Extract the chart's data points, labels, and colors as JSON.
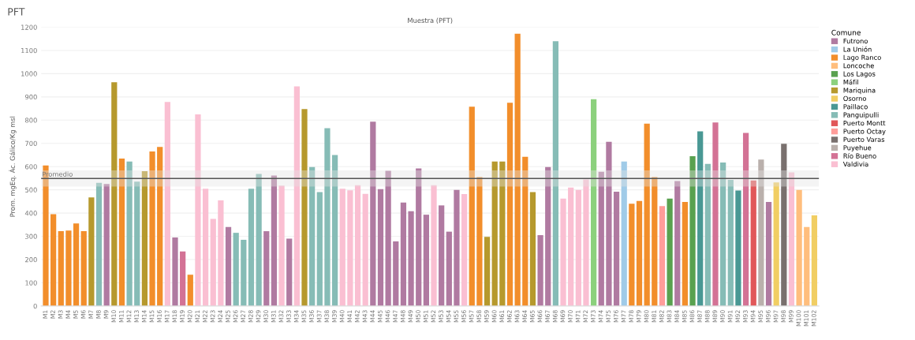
{
  "chart_data": {
    "type": "bar",
    "title": "PFT",
    "subtitle": "Muestra (PFT)",
    "ylabel": "Prom. mgEq. Ác. Gálico/Kg msl",
    "legend_title": "Comune",
    "categories": [
      "M1",
      "M2",
      "M3",
      "M4",
      "M5",
      "M6",
      "M7",
      "M8",
      "M9",
      "M10",
      "M11",
      "M12",
      "M13",
      "M14",
      "M15",
      "M16",
      "M17",
      "M18",
      "M19",
      "M20",
      "M21",
      "M22",
      "M23",
      "M24",
      "M25",
      "M26",
      "M27",
      "M28",
      "M29",
      "M30",
      "M31",
      "M32",
      "M33",
      "M34",
      "M35",
      "M36",
      "M37",
      "M38",
      "M39",
      "M40",
      "M41",
      "M42",
      "M43",
      "M44",
      "M45",
      "M46",
      "M47",
      "M48",
      "M49",
      "M50",
      "M51",
      "M52",
      "M53",
      "M54",
      "M55",
      "M56",
      "M57",
      "M58",
      "M59",
      "M60",
      "M61",
      "M62",
      "M63",
      "M64",
      "M65",
      "M66",
      "M67",
      "M68",
      "M69",
      "M70",
      "M71",
      "M72",
      "M73",
      "M74",
      "M75",
      "M76",
      "M77",
      "M78",
      "M79",
      "M80",
      "M81",
      "M82",
      "M83",
      "M84",
      "M85",
      "M86",
      "M87",
      "M88",
      "M89",
      "M90",
      "M91",
      "M92",
      "M93",
      "M94",
      "M95",
      "M96",
      "M97",
      "M98",
      "M99",
      "M100",
      "M101",
      "M102"
    ],
    "series": [
      {
        "name": "Futrono",
        "color": "#b07aa1",
        "values": [
          null,
          null,
          null,
          null,
          null,
          null,
          null,
          null,
          525,
          null,
          null,
          null,
          null,
          null,
          null,
          null,
          null,
          295,
          null,
          null,
          null,
          null,
          null,
          null,
          340,
          null,
          null,
          null,
          null,
          322,
          562,
          null,
          290,
          null,
          null,
          null,
          null,
          null,
          null,
          null,
          null,
          null,
          null,
          793,
          503,
          582,
          278,
          445,
          408,
          592,
          393,
          null,
          433,
          320,
          500,
          null,
          null,
          null,
          null,
          null,
          null,
          null,
          null,
          null,
          null,
          305,
          598,
          null,
          null,
          null,
          null,
          null,
          null,
          578,
          707,
          492,
          null,
          null,
          null,
          null,
          null,
          null,
          null,
          538,
          null,
          null,
          null,
          null,
          null,
          null,
          null,
          null,
          null,
          null,
          null,
          448,
          null,
          null,
          null,
          null,
          null,
          null
        ]
      },
      {
        "name": "La Unión",
        "color": "#a0cbe8",
        "values": [
          null,
          null,
          null,
          null,
          null,
          null,
          null,
          null,
          null,
          null,
          null,
          null,
          null,
          null,
          null,
          null,
          null,
          null,
          null,
          null,
          null,
          null,
          null,
          null,
          null,
          null,
          null,
          null,
          null,
          null,
          null,
          null,
          null,
          null,
          null,
          null,
          null,
          null,
          null,
          null,
          null,
          null,
          null,
          null,
          null,
          null,
          null,
          null,
          null,
          null,
          null,
          null,
          null,
          null,
          null,
          null,
          null,
          null,
          null,
          null,
          null,
          null,
          null,
          null,
          null,
          null,
          null,
          null,
          null,
          null,
          null,
          null,
          null,
          null,
          null,
          null,
          622,
          null,
          null,
          null,
          null,
          null,
          null,
          null,
          null,
          null,
          null,
          null,
          null,
          null,
          null,
          null,
          null,
          null,
          null,
          null,
          null,
          null,
          null,
          null,
          null,
          null
        ]
      },
      {
        "name": "Lago Ranco",
        "color": "#f28e2b",
        "values": [
          605,
          395,
          322,
          325,
          355,
          322,
          null,
          null,
          null,
          null,
          635,
          null,
          null,
          null,
          665,
          685,
          null,
          null,
          null,
          135,
          null,
          null,
          null,
          null,
          null,
          null,
          null,
          null,
          null,
          null,
          null,
          null,
          null,
          null,
          null,
          null,
          null,
          null,
          null,
          null,
          null,
          null,
          null,
          null,
          null,
          null,
          null,
          null,
          null,
          null,
          null,
          null,
          null,
          null,
          null,
          null,
          858,
          555,
          null,
          null,
          null,
          875,
          1172,
          642,
          null,
          null,
          null,
          null,
          null,
          null,
          null,
          null,
          null,
          null,
          null,
          null,
          null,
          440,
          452,
          785,
          555,
          null,
          null,
          null,
          448,
          null,
          null,
          null,
          null,
          null,
          null,
          null,
          null,
          null,
          null,
          null,
          null,
          null,
          null,
          null,
          null,
          null
        ]
      },
      {
        "name": "Loncoche",
        "color": "#ffbe7d",
        "values": [
          null,
          null,
          null,
          null,
          null,
          null,
          null,
          null,
          null,
          null,
          null,
          null,
          null,
          null,
          null,
          null,
          null,
          null,
          null,
          null,
          null,
          null,
          null,
          null,
          null,
          null,
          null,
          null,
          null,
          null,
          null,
          null,
          null,
          null,
          null,
          null,
          null,
          null,
          null,
          null,
          null,
          null,
          null,
          null,
          null,
          null,
          null,
          null,
          null,
          null,
          null,
          null,
          null,
          null,
          null,
          null,
          null,
          null,
          null,
          null,
          null,
          null,
          null,
          null,
          null,
          null,
          null,
          null,
          null,
          null,
          null,
          null,
          null,
          null,
          null,
          null,
          null,
          null,
          null,
          null,
          null,
          null,
          null,
          null,
          null,
          null,
          null,
          null,
          null,
          null,
          null,
          null,
          null,
          null,
          null,
          null,
          null,
          null,
          null,
          500,
          340,
          null
        ]
      },
      {
        "name": "Los Lagos",
        "color": "#59a14f",
        "values": [
          null,
          null,
          null,
          null,
          null,
          null,
          null,
          null,
          null,
          null,
          null,
          null,
          null,
          null,
          null,
          null,
          null,
          null,
          null,
          null,
          null,
          null,
          null,
          null,
          null,
          null,
          null,
          null,
          null,
          null,
          null,
          null,
          null,
          null,
          null,
          null,
          null,
          null,
          null,
          null,
          null,
          null,
          null,
          null,
          null,
          null,
          null,
          null,
          null,
          null,
          null,
          null,
          null,
          null,
          null,
          null,
          null,
          null,
          null,
          null,
          null,
          null,
          null,
          null,
          null,
          null,
          null,
          null,
          null,
          null,
          null,
          null,
          null,
          null,
          null,
          null,
          null,
          null,
          null,
          null,
          null,
          null,
          462,
          null,
          null,
          645,
          null,
          null,
          null,
          null,
          null,
          null,
          null,
          null,
          null,
          null,
          null,
          null,
          null,
          null,
          null,
          null
        ]
      },
      {
        "name": "Máfil",
        "color": "#8cd17d",
        "values": [
          null,
          null,
          null,
          null,
          null,
          null,
          null,
          null,
          null,
          null,
          null,
          null,
          null,
          null,
          null,
          null,
          null,
          null,
          null,
          null,
          null,
          null,
          null,
          null,
          null,
          null,
          null,
          null,
          null,
          null,
          null,
          null,
          null,
          null,
          null,
          null,
          null,
          null,
          null,
          null,
          null,
          null,
          null,
          null,
          null,
          null,
          null,
          null,
          null,
          null,
          null,
          null,
          null,
          null,
          null,
          null,
          null,
          null,
          null,
          null,
          null,
          null,
          null,
          null,
          null,
          null,
          null,
          null,
          null,
          null,
          null,
          null,
          890,
          null,
          null,
          null,
          null,
          null,
          null,
          null,
          null,
          null,
          null,
          null,
          null,
          null,
          null,
          null,
          null,
          null,
          null,
          null,
          null,
          null,
          null,
          null,
          null,
          null,
          null,
          null,
          null,
          null
        ]
      },
      {
        "name": "Mariquina",
        "color": "#b6992d",
        "values": [
          null,
          null,
          null,
          null,
          null,
          null,
          467,
          null,
          null,
          963,
          null,
          null,
          null,
          580,
          null,
          null,
          null,
          null,
          null,
          null,
          null,
          null,
          null,
          null,
          null,
          null,
          null,
          null,
          null,
          null,
          null,
          null,
          null,
          null,
          848,
          null,
          null,
          null,
          null,
          null,
          null,
          null,
          null,
          null,
          null,
          null,
          null,
          null,
          null,
          null,
          null,
          null,
          null,
          null,
          null,
          null,
          null,
          null,
          298,
          622,
          622,
          null,
          null,
          null,
          490,
          null,
          null,
          null,
          null,
          null,
          null,
          null,
          null,
          null,
          null,
          null,
          null,
          null,
          null,
          null,
          null,
          null,
          null,
          null,
          null,
          null,
          null,
          null,
          null,
          null,
          null,
          null,
          null,
          null,
          null,
          null,
          null,
          null,
          null,
          null,
          null,
          null
        ]
      },
      {
        "name": "Osorno",
        "color": "#f1ce63",
        "values": [
          null,
          null,
          null,
          null,
          null,
          null,
          null,
          null,
          null,
          null,
          null,
          null,
          null,
          null,
          null,
          null,
          null,
          null,
          null,
          null,
          null,
          null,
          null,
          null,
          null,
          null,
          null,
          null,
          null,
          null,
          null,
          null,
          null,
          null,
          null,
          null,
          null,
          null,
          null,
          null,
          null,
          null,
          null,
          null,
          null,
          null,
          null,
          null,
          null,
          null,
          null,
          null,
          null,
          null,
          null,
          null,
          null,
          null,
          null,
          null,
          null,
          null,
          null,
          null,
          null,
          null,
          null,
          null,
          null,
          null,
          null,
          null,
          null,
          null,
          null,
          null,
          null,
          null,
          null,
          null,
          null,
          null,
          null,
          null,
          null,
          null,
          null,
          null,
          null,
          null,
          null,
          null,
          null,
          null,
          null,
          null,
          532,
          null,
          null,
          null,
          null,
          390
        ]
      },
      {
        "name": "Paillaco",
        "color": "#499894",
        "values": [
          null,
          null,
          null,
          null,
          null,
          null,
          null,
          null,
          null,
          null,
          null,
          null,
          null,
          null,
          null,
          null,
          null,
          null,
          null,
          null,
          null,
          null,
          null,
          null,
          null,
          null,
          null,
          null,
          null,
          null,
          null,
          null,
          null,
          null,
          null,
          null,
          null,
          null,
          null,
          null,
          null,
          null,
          null,
          null,
          null,
          null,
          null,
          null,
          null,
          null,
          null,
          null,
          null,
          null,
          null,
          null,
          null,
          null,
          null,
          null,
          null,
          null,
          null,
          null,
          null,
          null,
          null,
          null,
          null,
          null,
          null,
          null,
          null,
          null,
          null,
          null,
          null,
          null,
          null,
          null,
          null,
          null,
          null,
          null,
          null,
          null,
          752,
          null,
          null,
          null,
          null,
          497,
          null,
          null,
          null,
          null,
          null,
          null,
          null,
          null,
          null,
          null
        ]
      },
      {
        "name": "Panguipulli",
        "color": "#86bcb6",
        "values": [
          null,
          null,
          null,
          null,
          null,
          null,
          null,
          530,
          null,
          null,
          null,
          622,
          535,
          null,
          null,
          null,
          null,
          null,
          null,
          null,
          null,
          null,
          null,
          null,
          null,
          315,
          285,
          505,
          568,
          null,
          null,
          null,
          null,
          null,
          null,
          598,
          490,
          765,
          650,
          null,
          null,
          null,
          null,
          null,
          null,
          null,
          null,
          null,
          null,
          null,
          null,
          null,
          null,
          null,
          null,
          null,
          null,
          null,
          null,
          null,
          null,
          null,
          null,
          null,
          null,
          null,
          null,
          1140,
          null,
          null,
          null,
          null,
          null,
          null,
          null,
          null,
          null,
          null,
          null,
          null,
          null,
          null,
          null,
          null,
          null,
          null,
          null,
          612,
          null,
          618,
          543,
          null,
          null,
          null,
          null,
          null,
          null,
          null,
          null,
          null,
          null,
          null
        ]
      },
      {
        "name": "Puerto Montt",
        "color": "#e15759",
        "values": [
          null,
          null,
          null,
          null,
          null,
          null,
          null,
          null,
          null,
          null,
          null,
          null,
          null,
          null,
          null,
          null,
          null,
          null,
          null,
          null,
          null,
          null,
          null,
          null,
          null,
          null,
          null,
          null,
          null,
          null,
          null,
          null,
          null,
          null,
          null,
          null,
          null,
          null,
          null,
          null,
          null,
          null,
          null,
          null,
          null,
          null,
          null,
          null,
          null,
          null,
          null,
          null,
          null,
          null,
          null,
          null,
          null,
          null,
          null,
          null,
          null,
          null,
          null,
          null,
          null,
          null,
          null,
          null,
          null,
          null,
          null,
          null,
          null,
          null,
          null,
          null,
          null,
          null,
          null,
          null,
          null,
          null,
          null,
          null,
          null,
          null,
          null,
          null,
          null,
          null,
          null,
          null,
          null,
          540,
          null,
          null,
          null,
          null,
          null,
          null,
          null,
          null
        ]
      },
      {
        "name": "Puerto Octay",
        "color": "#ff9d9a",
        "values": [
          null,
          null,
          null,
          null,
          null,
          null,
          null,
          null,
          null,
          null,
          null,
          null,
          null,
          null,
          null,
          null,
          null,
          null,
          null,
          null,
          null,
          null,
          null,
          null,
          null,
          null,
          null,
          null,
          null,
          null,
          null,
          null,
          null,
          null,
          null,
          null,
          null,
          null,
          null,
          null,
          null,
          null,
          null,
          null,
          null,
          null,
          null,
          null,
          null,
          null,
          null,
          null,
          null,
          null,
          null,
          null,
          null,
          null,
          null,
          null,
          null,
          null,
          null,
          null,
          null,
          null,
          null,
          null,
          null,
          null,
          null,
          null,
          null,
          null,
          null,
          null,
          null,
          null,
          null,
          null,
          null,
          430,
          null,
          null,
          null,
          null,
          null,
          null,
          null,
          null,
          null,
          null,
          null,
          null,
          null,
          null,
          null,
          null,
          null,
          null,
          null,
          null
        ]
      },
      {
        "name": "Puerto Varas",
        "color": "#79706e",
        "values": [
          null,
          null,
          null,
          null,
          null,
          null,
          null,
          null,
          null,
          null,
          null,
          null,
          null,
          null,
          null,
          null,
          null,
          null,
          null,
          null,
          null,
          null,
          null,
          null,
          null,
          null,
          null,
          null,
          null,
          null,
          null,
          null,
          null,
          null,
          null,
          null,
          null,
          null,
          null,
          null,
          null,
          null,
          null,
          null,
          null,
          null,
          null,
          null,
          null,
          null,
          null,
          null,
          null,
          null,
          null,
          null,
          null,
          null,
          null,
          null,
          null,
          null,
          null,
          null,
          null,
          null,
          null,
          null,
          null,
          null,
          null,
          null,
          null,
          null,
          null,
          null,
          null,
          null,
          null,
          null,
          null,
          null,
          null,
          null,
          null,
          null,
          null,
          null,
          null,
          null,
          null,
          null,
          null,
          null,
          null,
          null,
          null,
          698,
          null,
          null,
          null,
          null
        ]
      },
      {
        "name": "Puyehue",
        "color": "#bab0ac",
        "values": [
          null,
          null,
          null,
          null,
          null,
          null,
          null,
          null,
          null,
          null,
          null,
          null,
          null,
          null,
          null,
          null,
          null,
          null,
          null,
          null,
          null,
          null,
          null,
          null,
          null,
          null,
          null,
          null,
          null,
          null,
          null,
          null,
          null,
          null,
          null,
          null,
          null,
          null,
          null,
          null,
          null,
          null,
          null,
          null,
          null,
          null,
          null,
          null,
          null,
          null,
          null,
          null,
          null,
          null,
          null,
          null,
          null,
          null,
          null,
          null,
          null,
          null,
          null,
          null,
          null,
          null,
          null,
          null,
          null,
          null,
          null,
          null,
          null,
          null,
          null,
          null,
          null,
          null,
          null,
          null,
          null,
          null,
          null,
          null,
          null,
          null,
          null,
          null,
          null,
          null,
          null,
          null,
          null,
          null,
          630,
          null,
          null,
          null,
          null,
          null,
          null,
          null
        ]
      },
      {
        "name": "Río Bueno",
        "color": "#d37295",
        "values": [
          null,
          null,
          null,
          null,
          null,
          null,
          null,
          null,
          null,
          null,
          null,
          null,
          null,
          null,
          null,
          null,
          null,
          null,
          235,
          null,
          null,
          null,
          null,
          null,
          null,
          null,
          null,
          null,
          null,
          null,
          null,
          null,
          null,
          null,
          null,
          null,
          null,
          null,
          null,
          null,
          null,
          null,
          null,
          null,
          null,
          null,
          null,
          null,
          null,
          null,
          null,
          null,
          null,
          null,
          null,
          null,
          null,
          null,
          null,
          null,
          null,
          null,
          null,
          null,
          null,
          null,
          null,
          null,
          null,
          null,
          null,
          null,
          null,
          null,
          null,
          null,
          null,
          null,
          null,
          null,
          null,
          null,
          null,
          null,
          null,
          null,
          null,
          null,
          790,
          null,
          null,
          null,
          745,
          null,
          null,
          null,
          null,
          null,
          null,
          null,
          null,
          null
        ]
      },
      {
        "name": "Valdivia",
        "color": "#fabfd2",
        "values": [
          null,
          null,
          null,
          null,
          null,
          null,
          null,
          null,
          null,
          null,
          null,
          null,
          null,
          null,
          null,
          null,
          878,
          null,
          null,
          null,
          825,
          505,
          375,
          455,
          null,
          null,
          null,
          null,
          null,
          null,
          null,
          518,
          null,
          945,
          null,
          null,
          null,
          null,
          null,
          505,
          498,
          520,
          483,
          null,
          null,
          null,
          null,
          null,
          null,
          null,
          null,
          520,
          null,
          null,
          null,
          482,
          null,
          null,
          null,
          null,
          null,
          null,
          null,
          null,
          null,
          null,
          null,
          null,
          462,
          510,
          500,
          545,
          null,
          null,
          null,
          null,
          null,
          null,
          null,
          null,
          null,
          null,
          null,
          null,
          null,
          null,
          null,
          null,
          null,
          null,
          null,
          null,
          null,
          null,
          null,
          null,
          null,
          null,
          575,
          null,
          null,
          null
        ]
      }
    ],
    "ylim": [
      0,
      1200
    ],
    "yticks": [
      0,
      100,
      200,
      300,
      400,
      500,
      600,
      700,
      800,
      900,
      1000,
      1100,
      1200
    ],
    "grid": "y",
    "legend": "right",
    "ref_lines": [
      {
        "axis": "y",
        "value": 549,
        "label": "Promedio",
        "color": "#555555"
      }
    ],
    "bands": [
      {
        "axis": "y",
        "from": 514,
        "to": 584,
        "color": "#e3e3e3"
      }
    ]
  }
}
